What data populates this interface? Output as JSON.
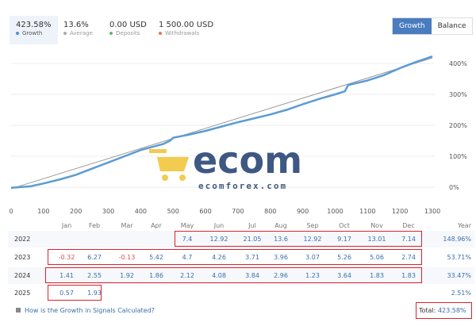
{
  "stats": [
    {
      "value": "423.58%",
      "label": "Growth",
      "color": "#4a90d9"
    },
    {
      "value": "13.6%",
      "label": "Average",
      "color": "#aaaaaa"
    },
    {
      "value": "0.00 USD",
      "label": "Deposits",
      "color": "#5cb85c"
    },
    {
      "value": "1 500.00 USD",
      "label": "Withdrawals",
      "color": "#e8744f"
    }
  ],
  "toggle": {
    "growth": "Growth",
    "balance": "Balance"
  },
  "watermark": {
    "brand": "ecom",
    "site": "ecomforex.com"
  },
  "chart_data": {
    "type": "line",
    "xlim": [
      0,
      1300
    ],
    "ylim": [
      0,
      400
    ],
    "x_ticks": [
      "0",
      "100",
      "200",
      "300",
      "400",
      "500",
      "600",
      "700",
      "800",
      "900",
      "1000",
      "1100",
      "1200",
      "1300"
    ],
    "y_ticks": [
      "0%",
      "100%",
      "200%",
      "300%",
      "400%"
    ],
    "series": [
      {
        "name": "Growth",
        "color": "#5b9bd5",
        "points": [
          [
            0,
            -2
          ],
          [
            60,
            3
          ],
          [
            100,
            12
          ],
          [
            150,
            25
          ],
          [
            200,
            40
          ],
          [
            250,
            60
          ],
          [
            300,
            80
          ],
          [
            350,
            100
          ],
          [
            400,
            120
          ],
          [
            470,
            140
          ],
          [
            490,
            150
          ],
          [
            500,
            160
          ],
          [
            550,
            170
          ],
          [
            600,
            182
          ],
          [
            700,
            210
          ],
          [
            800,
            235
          ],
          [
            850,
            250
          ],
          [
            900,
            268
          ],
          [
            950,
            285
          ],
          [
            1000,
            300
          ],
          [
            1030,
            310
          ],
          [
            1040,
            330
          ],
          [
            1100,
            345
          ],
          [
            1150,
            362
          ],
          [
            1200,
            385
          ],
          [
            1250,
            405
          ],
          [
            1300,
            423
          ]
        ]
      },
      {
        "name": "Trend",
        "color": "#999999",
        "points": [
          [
            0,
            -5
          ],
          [
            1300,
            418
          ]
        ]
      }
    ]
  },
  "table": {
    "months": [
      "Jan",
      "Feb",
      "Mar",
      "Apr",
      "May",
      "Jun",
      "Jul",
      "Aug",
      "Sep",
      "Oct",
      "Nov",
      "Dec"
    ],
    "year_header": "Year",
    "rows": [
      {
        "year": "2022",
        "values": [
          "",
          "",
          "",
          "",
          "7.4",
          "12.92",
          "21.05",
          "13.6",
          "12.92",
          "9.17",
          "13.01",
          "7.14"
        ],
        "total": "148.96%"
      },
      {
        "year": "2023",
        "values": [
          "-0.32",
          "6.27",
          "-0.13",
          "5.42",
          "4.7",
          "4.26",
          "3.71",
          "3.96",
          "3.07",
          "5.26",
          "5.06",
          "2.74"
        ],
        "total": "53.71%"
      },
      {
        "year": "2024",
        "values": [
          "1.41",
          "2.55",
          "1.92",
          "1.86",
          "2.12",
          "4.08",
          "3.84",
          "2.96",
          "1.23",
          "3.64",
          "1.83",
          "1.83"
        ],
        "total": "33.47%"
      },
      {
        "year": "2025",
        "values": [
          "0.57",
          "1.93",
          "",
          "",
          "",
          "",
          "",
          "",
          "",
          "",
          "",
          ""
        ],
        "total": "2.51%"
      }
    ],
    "help_link": "How is the Growth in Signals Calculated?",
    "total_label": "Total:",
    "total_value": "423.58%"
  }
}
